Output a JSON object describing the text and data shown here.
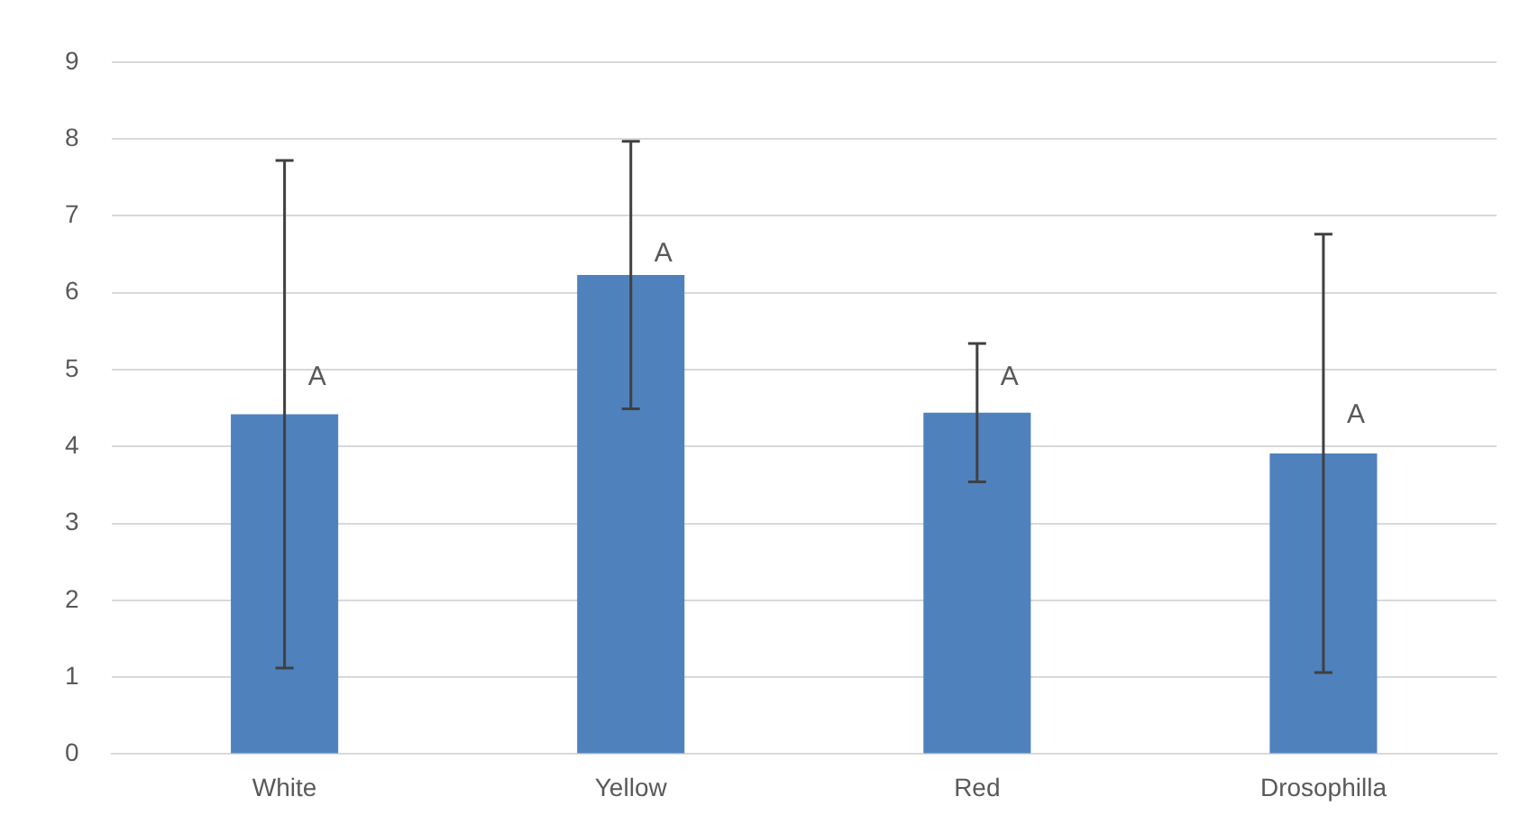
{
  "chart_data": {
    "type": "bar",
    "categories": [
      "White",
      "Yellow",
      "Red",
      "Drosophilla"
    ],
    "values": [
      4.42,
      6.23,
      4.44,
      3.91
    ],
    "errors": [
      3.3,
      1.74,
      0.9,
      2.85
    ],
    "color": "#4f81bd",
    "ylim": [
      0,
      9
    ],
    "yticks": [
      0,
      1,
      2,
      3,
      4,
      5,
      6,
      7,
      8,
      9
    ],
    "grid": "y",
    "legend": false,
    "annotations": [
      {
        "text": "A",
        "x": "White",
        "y": 4.9
      },
      {
        "text": "A",
        "x": "Yellow",
        "y": 6.5
      },
      {
        "text": "A",
        "x": "Red",
        "y": 4.9
      },
      {
        "text": "A",
        "x": "Drosophilla",
        "y": 4.4
      }
    ]
  }
}
